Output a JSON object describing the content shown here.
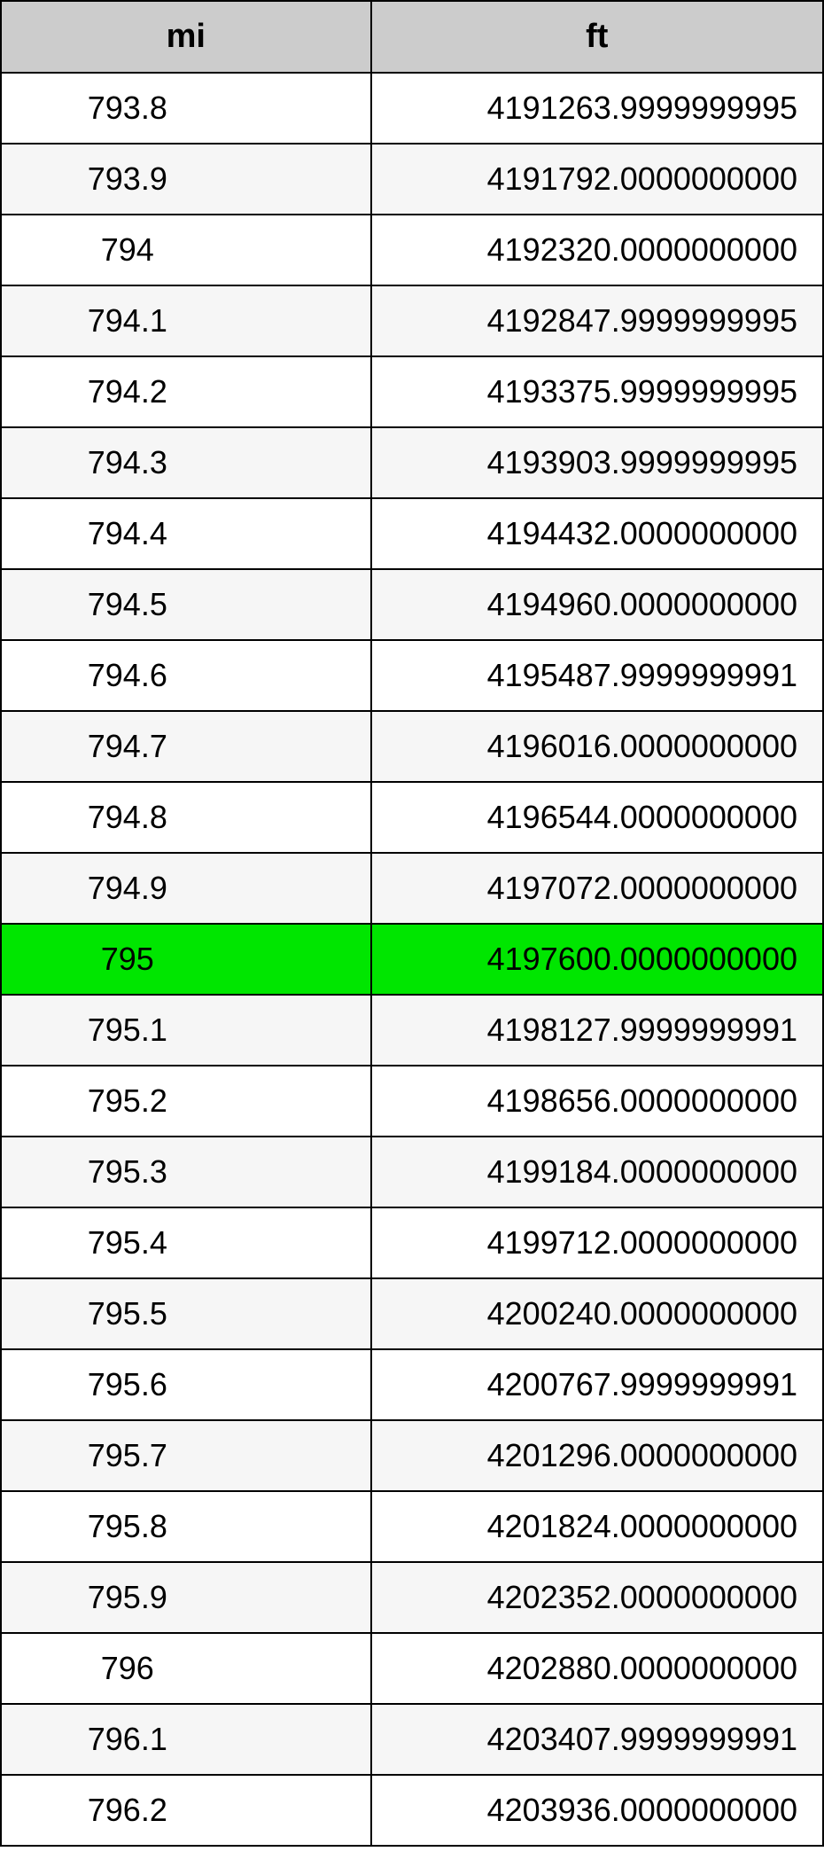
{
  "table": {
    "columns": [
      "mi",
      "ft"
    ],
    "header_bg": "#cccccc",
    "border_color": "#000000",
    "alt_row_bg": "#f6f6f6",
    "highlight_bg": "#00e600",
    "highlight_index": 12,
    "font_family": "Arial",
    "header_fontsize": 38,
    "cell_fontsize": 36,
    "rows": [
      {
        "mi": "793.8",
        "ft": "4191263.9999999995"
      },
      {
        "mi": "793.9",
        "ft": "4191792.0000000000"
      },
      {
        "mi": "794",
        "ft": "4192320.0000000000"
      },
      {
        "mi": "794.1",
        "ft": "4192847.9999999995"
      },
      {
        "mi": "794.2",
        "ft": "4193375.9999999995"
      },
      {
        "mi": "794.3",
        "ft": "4193903.9999999995"
      },
      {
        "mi": "794.4",
        "ft": "4194432.0000000000"
      },
      {
        "mi": "794.5",
        "ft": "4194960.0000000000"
      },
      {
        "mi": "794.6",
        "ft": "4195487.9999999991"
      },
      {
        "mi": "794.7",
        "ft": "4196016.0000000000"
      },
      {
        "mi": "794.8",
        "ft": "4196544.0000000000"
      },
      {
        "mi": "794.9",
        "ft": "4197072.0000000000"
      },
      {
        "mi": "795",
        "ft": "4197600.0000000000"
      },
      {
        "mi": "795.1",
        "ft": "4198127.9999999991"
      },
      {
        "mi": "795.2",
        "ft": "4198656.0000000000"
      },
      {
        "mi": "795.3",
        "ft": "4199184.0000000000"
      },
      {
        "mi": "795.4",
        "ft": "4199712.0000000000"
      },
      {
        "mi": "795.5",
        "ft": "4200240.0000000000"
      },
      {
        "mi": "795.6",
        "ft": "4200767.9999999991"
      },
      {
        "mi": "795.7",
        "ft": "4201296.0000000000"
      },
      {
        "mi": "795.8",
        "ft": "4201824.0000000000"
      },
      {
        "mi": "795.9",
        "ft": "4202352.0000000000"
      },
      {
        "mi": "796",
        "ft": "4202880.0000000000"
      },
      {
        "mi": "796.1",
        "ft": "4203407.9999999991"
      },
      {
        "mi": "796.2",
        "ft": "4203936.0000000000"
      }
    ]
  }
}
